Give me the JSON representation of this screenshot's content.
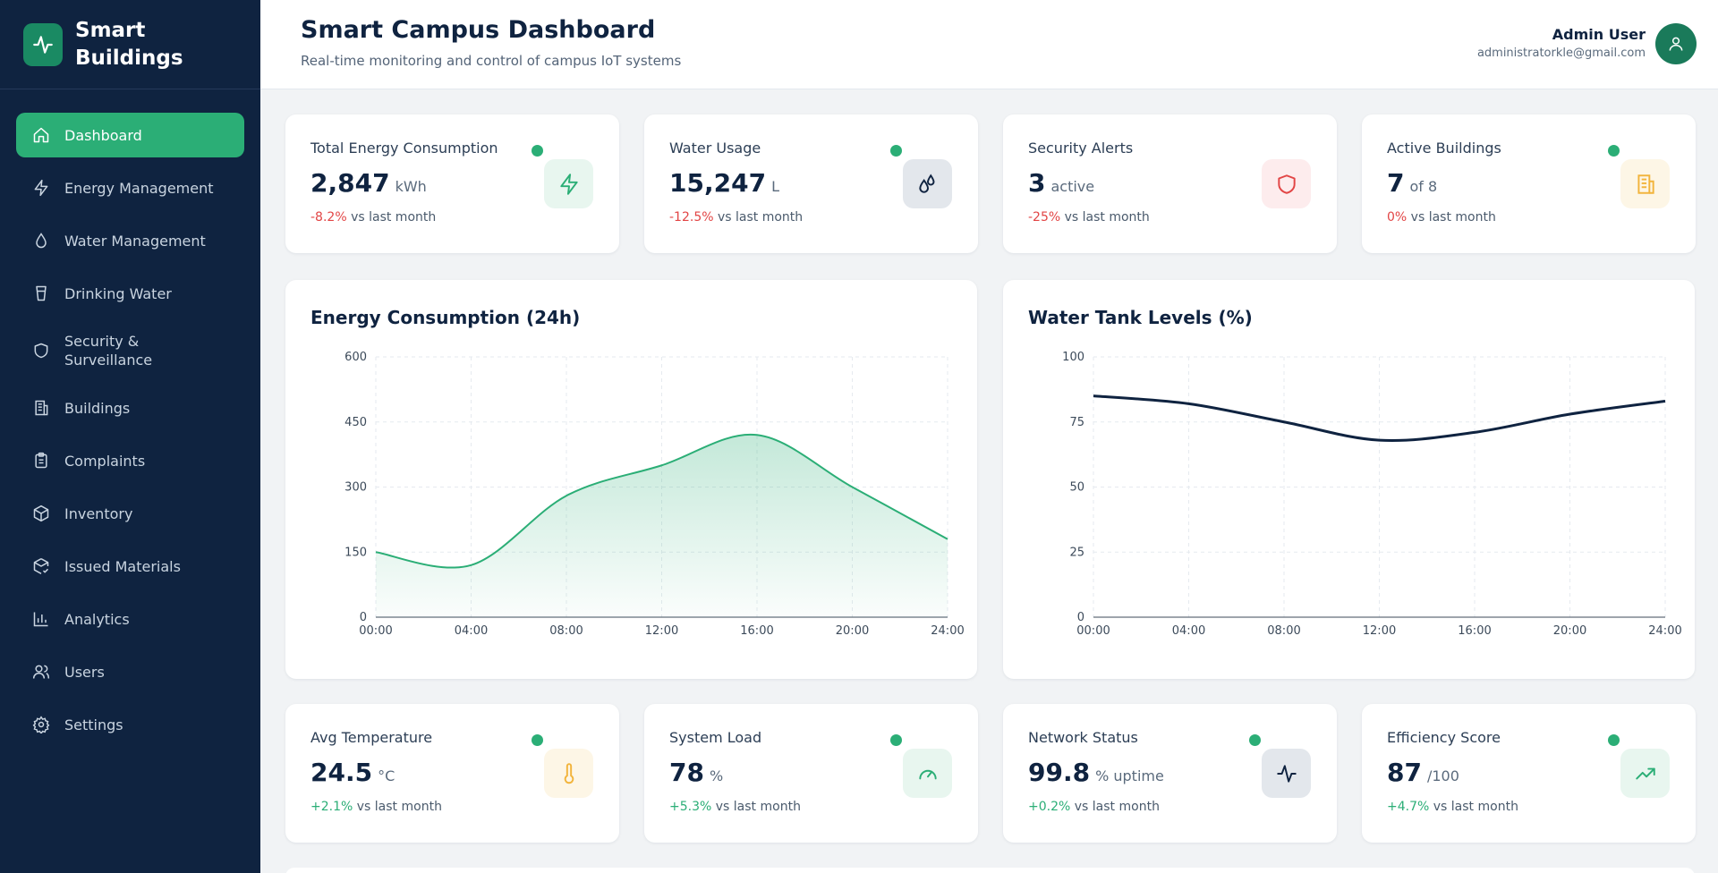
{
  "brand": {
    "name": "Smart Buildings"
  },
  "sidebar": {
    "items": [
      {
        "label": "Dashboard",
        "icon": "home-icon",
        "active": true
      },
      {
        "label": "Energy Management",
        "icon": "bolt-icon"
      },
      {
        "label": "Water Management",
        "icon": "droplet-icon"
      },
      {
        "label": "Drinking Water",
        "icon": "cup-icon"
      },
      {
        "label": "Security & Surveillance",
        "icon": "shield-icon"
      },
      {
        "label": "Buildings",
        "icon": "building-icon"
      },
      {
        "label": "Complaints",
        "icon": "clipboard-icon"
      },
      {
        "label": "Inventory",
        "icon": "box-icon"
      },
      {
        "label": "Issued Materials",
        "icon": "package-check-icon"
      },
      {
        "label": "Analytics",
        "icon": "bar-chart-icon"
      },
      {
        "label": "Users",
        "icon": "users-icon"
      },
      {
        "label": "Settings",
        "icon": "gear-icon"
      }
    ]
  },
  "header": {
    "title": "Smart Campus Dashboard",
    "subtitle": "Real-time monitoring and control of campus IoT systems",
    "user_name": "Admin User",
    "user_email": "administratorkle@gmail.com"
  },
  "stats_top": [
    {
      "label": "Total Energy Consumption",
      "value": "2,847",
      "unit": "kWh",
      "change": "-8.2%",
      "change_suffix": "vs last month",
      "status_dot": true,
      "icon": "bolt-icon",
      "icon_color": "#2bae76",
      "icon_bg": "#e8f6ef"
    },
    {
      "label": "Water Usage",
      "value": "15,247",
      "unit": "L",
      "change": "-12.5%",
      "change_suffix": "vs last month",
      "status_dot": true,
      "icon": "droplets-icon",
      "icon_color": "#0f2340",
      "icon_bg": "#e3e7ec"
    },
    {
      "label": "Security Alerts",
      "value": "3",
      "unit": "active",
      "change": "-25%",
      "change_suffix": "vs last month",
      "status_dot": false,
      "icon": "shield-icon",
      "icon_color": "#e24545",
      "icon_bg": "#fdeced"
    },
    {
      "label": "Active Buildings",
      "value": "7",
      "unit": "of 8",
      "change": "0%",
      "change_suffix": "vs last month",
      "status_dot": true,
      "icon": "building-icon",
      "icon_color": "#f2b43c",
      "icon_bg": "#fdf6e6"
    }
  ],
  "stats_bottom": [
    {
      "label": "Avg Temperature",
      "value": "24.5",
      "unit": "°C",
      "change": "+2.1%",
      "change_suffix": "vs last month",
      "status_dot": true,
      "icon": "thermometer-icon",
      "icon_color": "#f2b43c",
      "icon_bg": "#fdf6e6"
    },
    {
      "label": "System Load",
      "value": "78",
      "unit": "%",
      "change": "+5.3%",
      "change_suffix": "vs last month",
      "status_dot": true,
      "icon": "gauge-icon",
      "icon_color": "#2bae76",
      "icon_bg": "#e8f6ef"
    },
    {
      "label": "Network Status",
      "value": "99.8",
      "unit": "% uptime",
      "change": "+0.2%",
      "change_suffix": "vs last month",
      "status_dot": true,
      "icon": "activity-icon",
      "icon_color": "#0f2340",
      "icon_bg": "#e3e7ec"
    },
    {
      "label": "Efficiency Score",
      "value": "87",
      "unit": "/100",
      "change": "+4.7%",
      "change_suffix": "vs last month",
      "status_dot": true,
      "icon": "trending-up-icon",
      "icon_color": "#2bae76",
      "icon_bg": "#e8f6ef"
    }
  ],
  "colors": {
    "accent": "#2bae76",
    "navy": "#0f2340",
    "negative": "#e24545"
  },
  "chart_data": [
    {
      "type": "area",
      "title": "Energy Consumption (24h)",
      "x": [
        "00:00",
        "04:00",
        "08:00",
        "12:00",
        "16:00",
        "20:00",
        "24:00"
      ],
      "series": [
        {
          "values": [
            150,
            120,
            280,
            350,
            420,
            300,
            180
          ]
        }
      ],
      "ylim": [
        0,
        600
      ],
      "yticks": [
        0,
        150,
        300,
        450,
        600
      ],
      "grid": true,
      "color": "#2bae76"
    },
    {
      "type": "line",
      "title": "Water Tank Levels (%)",
      "x": [
        "00:00",
        "04:00",
        "08:00",
        "12:00",
        "16:00",
        "20:00",
        "24:00"
      ],
      "series": [
        {
          "values": [
            85,
            82,
            75,
            68,
            71,
            78,
            83
          ]
        }
      ],
      "ylim": [
        0,
        100
      ],
      "yticks": [
        0,
        25,
        50,
        75,
        100
      ],
      "grid": true,
      "color": "#0f2340"
    }
  ]
}
